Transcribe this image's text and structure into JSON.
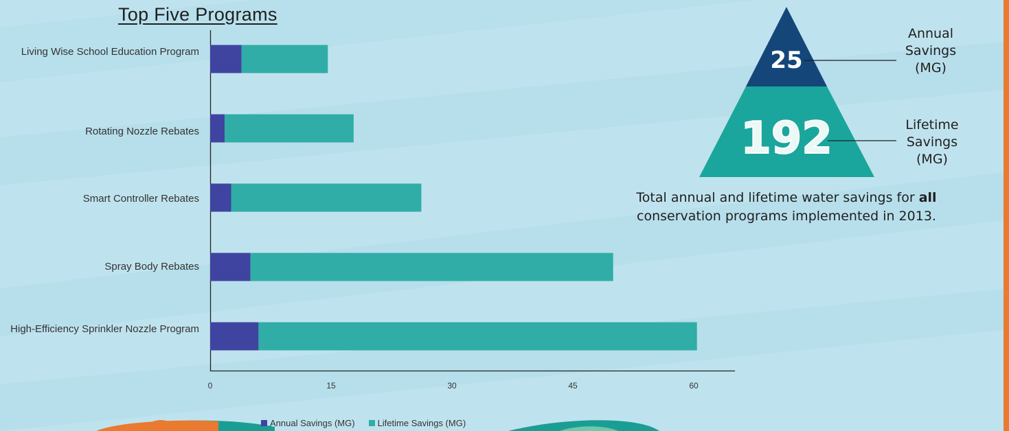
{
  "colors": {
    "background": "#bfe3ee",
    "stripe": "#acd9e8",
    "annual": "#3f44a0",
    "lifetime": "#2fada6",
    "triangle_top": "#15467a",
    "triangle_bottom": "#1aa69c",
    "orange_accent": "#e97a30",
    "teal_blob": "#1a9e94"
  },
  "chart_data": {
    "type": "bar",
    "orientation": "horizontal",
    "stacked": true,
    "title": "Top Five Programs",
    "categories": [
      "Living Wise School Education Program",
      "Rotating Nozzle Rebates",
      "Smart Controller Rebates",
      "Spray Body Rebates",
      "High-Efficiency Sprinkler Nozzle Program"
    ],
    "series": [
      {
        "name": "Annual Savings (MG)",
        "values": [
          3.9,
          1.8,
          2.6,
          5.0,
          6.0
        ]
      },
      {
        "name": "Lifetime Savings (MG)",
        "values": [
          10.7,
          16.0,
          23.6,
          45.0,
          54.4
        ]
      }
    ],
    "xlim": [
      0,
      65
    ],
    "xticks": [
      "0",
      "15",
      "30",
      "45",
      "60"
    ],
    "xtick_values": [
      0,
      15,
      30,
      45,
      60
    ],
    "grid": false,
    "legend": "bottom"
  },
  "infographic": {
    "annual_value": "25",
    "annual_label": [
      "Annual",
      "Savings",
      "(MG)"
    ],
    "lifetime_value": "192",
    "lifetime_label": [
      "Lifetime",
      "Savings",
      "(MG)"
    ],
    "caption_prefix": "Total annual and lifetime water savings for ",
    "caption_bold": "all",
    "caption_suffix": "conservation programs implemented in 2013."
  }
}
